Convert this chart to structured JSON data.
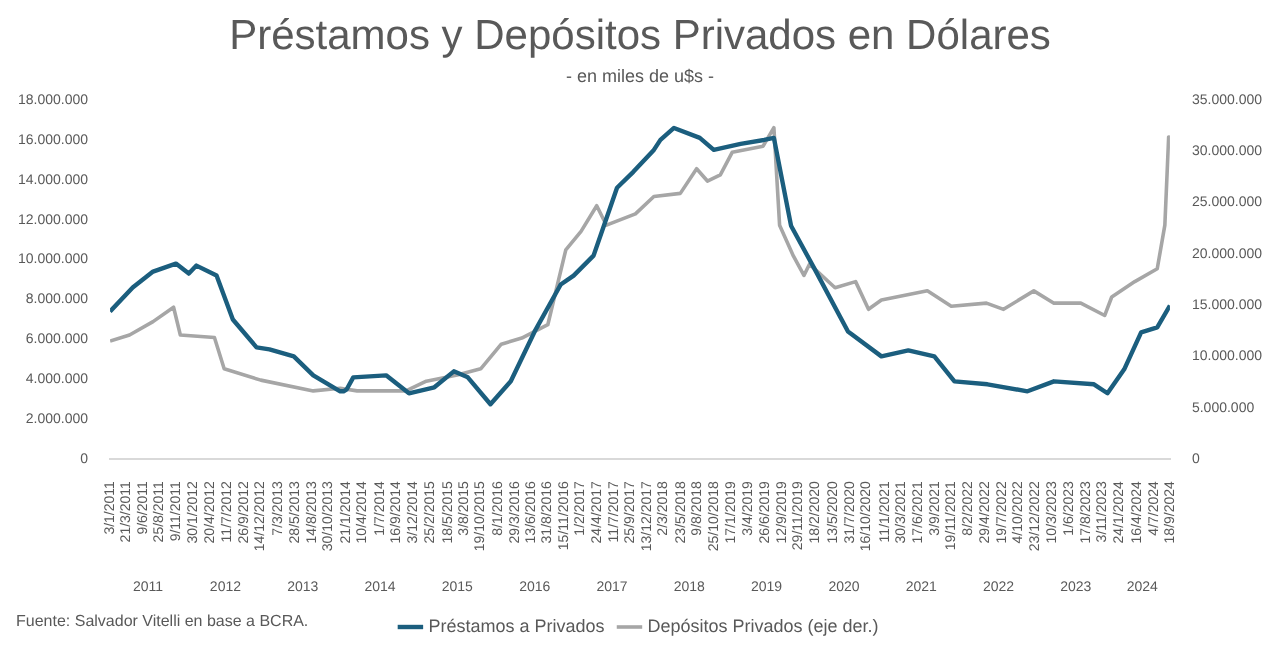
{
  "chart_data": {
    "type": "line",
    "title": "Préstamos y Depósitos Privados en Dólares",
    "subtitle": "- en miles de u$s -",
    "annotations": [
      "Fuente: Salvador Vitelli en base a BCRA."
    ],
    "legend": "bottom",
    "grid": false,
    "marker": "none",
    "line_style": "solid",
    "xlim": [
      "2011-01-03",
      "2024-09-18"
    ],
    "xticks": [
      {
        "value": "2011-01-03",
        "label": "3/1/2011"
      },
      {
        "value": "2011-03-21",
        "label": "21/3/2011"
      },
      {
        "value": "2011-06-09",
        "label": "9/6/2011"
      },
      {
        "value": "2011-08-25",
        "label": "25/8/2011"
      },
      {
        "value": "2011-11-09",
        "label": "9/11/2011"
      },
      {
        "value": "2012-01-30",
        "label": "30/1/2012"
      },
      {
        "value": "2012-04-20",
        "label": "20/4/2012"
      },
      {
        "value": "2012-07-11",
        "label": "11/7/2012"
      },
      {
        "value": "2012-09-26",
        "label": "26/9/2012"
      },
      {
        "value": "2012-12-14",
        "label": "14/12/2012"
      },
      {
        "value": "2013-03-07",
        "label": "7/3/2013"
      },
      {
        "value": "2013-05-28",
        "label": "28/5/2013"
      },
      {
        "value": "2013-08-14",
        "label": "14/8/2013"
      },
      {
        "value": "2013-10-30",
        "label": "30/10/2013"
      },
      {
        "value": "2014-01-21",
        "label": "21/1/2014"
      },
      {
        "value": "2014-04-10",
        "label": "10/4/2014"
      },
      {
        "value": "2014-07-01",
        "label": "1/7/2014"
      },
      {
        "value": "2014-09-16",
        "label": "16/9/2014"
      },
      {
        "value": "2014-12-03",
        "label": "3/12/2014"
      },
      {
        "value": "2015-02-25",
        "label": "25/2/2015"
      },
      {
        "value": "2015-05-18",
        "label": "18/5/2015"
      },
      {
        "value": "2015-08-03",
        "label": "3/8/2015"
      },
      {
        "value": "2015-10-19",
        "label": "19/10/2015"
      },
      {
        "value": "2016-01-08",
        "label": "8/1/2016"
      },
      {
        "value": "2016-03-29",
        "label": "29/3/2016"
      },
      {
        "value": "2016-06-13",
        "label": "13/6/2016"
      },
      {
        "value": "2016-08-31",
        "label": "31/8/2016"
      },
      {
        "value": "2016-11-15",
        "label": "15/11/2016"
      },
      {
        "value": "2017-02-01",
        "label": "1/2/2017"
      },
      {
        "value": "2017-04-24",
        "label": "24/4/2017"
      },
      {
        "value": "2017-07-11",
        "label": "11/7/2017"
      },
      {
        "value": "2017-09-25",
        "label": "25/9/2017"
      },
      {
        "value": "2017-12-13",
        "label": "13/12/2017"
      },
      {
        "value": "2018-03-02",
        "label": "2/3/2018"
      },
      {
        "value": "2018-05-23",
        "label": "23/5/2018"
      },
      {
        "value": "2018-08-09",
        "label": "9/8/2018"
      },
      {
        "value": "2018-10-25",
        "label": "25/10/2018"
      },
      {
        "value": "2019-01-17",
        "label": "17/1/2019"
      },
      {
        "value": "2019-04-03",
        "label": "3/4/2019"
      },
      {
        "value": "2019-06-26",
        "label": "26/6/2019"
      },
      {
        "value": "2019-09-12",
        "label": "12/9/2019"
      },
      {
        "value": "2019-11-29",
        "label": "29/11/2019"
      },
      {
        "value": "2020-02-18",
        "label": "18/2/2020"
      },
      {
        "value": "2020-05-13",
        "label": "13/5/2020"
      },
      {
        "value": "2020-07-31",
        "label": "31/7/2020"
      },
      {
        "value": "2020-10-16",
        "label": "16/10/2020"
      },
      {
        "value": "2021-01-11",
        "label": "11/1/2021"
      },
      {
        "value": "2021-03-30",
        "label": "30/3/2021"
      },
      {
        "value": "2021-06-17",
        "label": "17/6/2021"
      },
      {
        "value": "2021-09-03",
        "label": "3/9/2021"
      },
      {
        "value": "2021-11-19",
        "label": "19/11/2021"
      },
      {
        "value": "2022-02-08",
        "label": "8/2/2022"
      },
      {
        "value": "2022-04-29",
        "label": "29/4/2022"
      },
      {
        "value": "2022-07-19",
        "label": "19/7/2022"
      },
      {
        "value": "2022-10-04",
        "label": "4/10/2022"
      },
      {
        "value": "2022-12-23",
        "label": "23/12/2022"
      },
      {
        "value": "2023-03-10",
        "label": "10/3/2023"
      },
      {
        "value": "2023-06-01",
        "label": "1/6/2023"
      },
      {
        "value": "2023-08-17",
        "label": "17/8/2023"
      },
      {
        "value": "2023-11-03",
        "label": "3/11/2023"
      },
      {
        "value": "2024-01-24",
        "label": "24/1/2024"
      },
      {
        "value": "2024-04-16",
        "label": "16/4/2024"
      },
      {
        "value": "2024-07-04",
        "label": "4/7/2024"
      },
      {
        "value": "2024-09-18",
        "label": "18/9/2024"
      }
    ],
    "x2lim": [
      "2011-01-03",
      "2024-09-18"
    ],
    "x2ticks": [
      {
        "value": "2011-07-01",
        "label": "2011"
      },
      {
        "value": "2012-07-01",
        "label": "2012"
      },
      {
        "value": "2013-07-01",
        "label": "2013"
      },
      {
        "value": "2014-07-01",
        "label": "2014"
      },
      {
        "value": "2015-07-01",
        "label": "2015"
      },
      {
        "value": "2016-07-01",
        "label": "2016"
      },
      {
        "value": "2017-07-01",
        "label": "2017"
      },
      {
        "value": "2018-07-01",
        "label": "2018"
      },
      {
        "value": "2019-07-01",
        "label": "2019"
      },
      {
        "value": "2020-07-01",
        "label": "2020"
      },
      {
        "value": "2021-07-01",
        "label": "2021"
      },
      {
        "value": "2022-07-01",
        "label": "2022"
      },
      {
        "value": "2023-07-01",
        "label": "2023"
      },
      {
        "value": "2024-05-10",
        "label": "2024"
      }
    ],
    "ylim": [
      0,
      18000000
    ],
    "yticks": [
      0,
      {
        "value": 2000000,
        "label": "2.000.000"
      },
      {
        "value": 4000000,
        "label": "4.000.000"
      },
      {
        "value": 6000000,
        "label": "6.000.000"
      },
      {
        "value": 8000000,
        "label": "8.000.000"
      },
      {
        "value": 10000000,
        "label": "10.000.000"
      },
      {
        "value": 12000000,
        "label": "12.000.000"
      },
      {
        "value": 14000000,
        "label": "14.000.000"
      },
      {
        "value": 16000000,
        "label": "16.000.000"
      },
      {
        "value": 18000000,
        "label": "18.000.000"
      }
    ],
    "y2lim": [
      0,
      35000000
    ],
    "y2ticks": [
      0,
      {
        "value": 5000000,
        "label": "5.000.000"
      },
      {
        "value": 10000000,
        "label": "10.000.000"
      },
      {
        "value": 15000000,
        "label": "15.000.000"
      },
      {
        "value": 20000000,
        "label": "20.000.000"
      },
      {
        "value": 25000000,
        "label": "25.000.000"
      },
      {
        "value": 30000000,
        "label": "30.000.000"
      },
      {
        "value": 35000000,
        "label": "35.000.000"
      }
    ],
    "series": [
      {
        "name": "Préstamos a Privados",
        "color": "#1b5e7e",
        "axis": "y",
        "x": [
          "2011-01-03",
          "2011-04-20",
          "2011-07-25",
          "2011-11-10",
          "2012-01-10",
          "2012-02-15",
          "2012-05-20",
          "2012-08-05",
          "2012-11-25",
          "2013-01-25",
          "2013-05-20",
          "2013-08-20",
          "2013-12-25",
          "2014-01-10",
          "2014-01-25",
          "2014-02-25",
          "2014-07-30",
          "2014-11-15",
          "2015-03-15",
          "2015-06-15",
          "2015-08-20",
          "2015-12-05",
          "2016-03-10",
          "2016-07-01",
          "2016-11-01",
          "2017-01-01",
          "2017-04-05",
          "2017-07-25",
          "2017-10-10",
          "2018-01-15",
          "2018-02-15",
          "2018-04-20",
          "2018-08-20",
          "2018-10-25",
          "2019-03-01",
          "2019-06-20",
          "2019-08-05",
          "2019-10-25",
          "2020-02-15",
          "2020-07-20",
          "2020-12-25",
          "2021-05-01",
          "2021-09-01",
          "2021-12-05",
          "2022-05-10",
          "2022-11-15",
          "2023-03-20",
          "2023-09-25",
          "2023-11-28",
          "2024-02-15",
          "2024-05-05",
          "2024-07-20",
          "2024-09-18"
        ],
        "values": [
          7400000,
          8600000,
          9400000,
          9800000,
          9300000,
          9700000,
          9200000,
          7000000,
          5600000,
          5500000,
          5150000,
          4200000,
          3400000,
          3400000,
          3500000,
          4100000,
          4200000,
          3300000,
          3600000,
          4400000,
          4100000,
          2750000,
          3900000,
          6400000,
          8750000,
          9200000,
          10200000,
          13600000,
          14400000,
          15500000,
          16000000,
          16600000,
          16100000,
          15500000,
          15800000,
          16000000,
          16100000,
          11700000,
          9500000,
          6400000,
          5150000,
          5450000,
          5150000,
          3900000,
          3750000,
          3400000,
          3900000,
          3750000,
          3300000,
          4500000,
          6350000,
          6600000,
          7700000
        ]
      },
      {
        "name": "Depósitos Privados (eje der.)",
        "color": "#a6a6a6",
        "axis": "y2",
        "x": [
          "2011-01-03",
          "2011-04-05",
          "2011-07-25",
          "2011-10-30",
          "2011-12-01",
          "2012-05-10",
          "2012-06-25",
          "2012-12-15",
          "2013-08-20",
          "2013-12-25",
          "2014-03-15",
          "2014-11-01",
          "2015-02-05",
          "2015-07-01",
          "2015-10-20",
          "2016-01-25",
          "2016-05-01",
          "2016-09-01",
          "2016-11-25",
          "2017-02-05",
          "2017-04-20",
          "2017-06-05",
          "2017-10-20",
          "2018-01-15",
          "2018-05-20",
          "2018-08-05",
          "2018-09-25",
          "2018-11-25",
          "2019-01-20",
          "2019-06-15",
          "2019-08-05",
          "2019-09-01",
          "2019-11-05",
          "2019-12-25",
          "2020-01-20",
          "2020-05-20",
          "2020-08-25",
          "2020-10-25",
          "2020-12-25",
          "2021-07-30",
          "2021-11-20",
          "2022-05-05",
          "2022-07-25",
          "2022-12-15",
          "2023-03-20",
          "2023-07-25",
          "2023-11-15",
          "2023-12-18",
          "2024-04-05",
          "2024-07-20",
          "2024-08-25",
          "2024-09-12",
          "2024-09-18"
        ],
        "values": [
          11500000,
          12100000,
          13400000,
          14800000,
          12100000,
          11850000,
          8800000,
          7700000,
          6650000,
          6900000,
          6650000,
          6650000,
          7600000,
          8200000,
          8800000,
          11200000,
          11800000,
          13100000,
          20400000,
          22200000,
          24700000,
          22800000,
          23900000,
          25600000,
          25900000,
          28300000,
          27100000,
          27700000,
          29900000,
          30500000,
          32300000,
          22800000,
          19800000,
          17900000,
          19000000,
          16700000,
          17300000,
          14600000,
          15500000,
          16400000,
          14900000,
          15200000,
          14600000,
          16400000,
          15200000,
          15200000,
          14000000,
          15800000,
          17300000,
          18550000,
          22800000,
          31400000,
          30800000
        ]
      }
    ]
  }
}
